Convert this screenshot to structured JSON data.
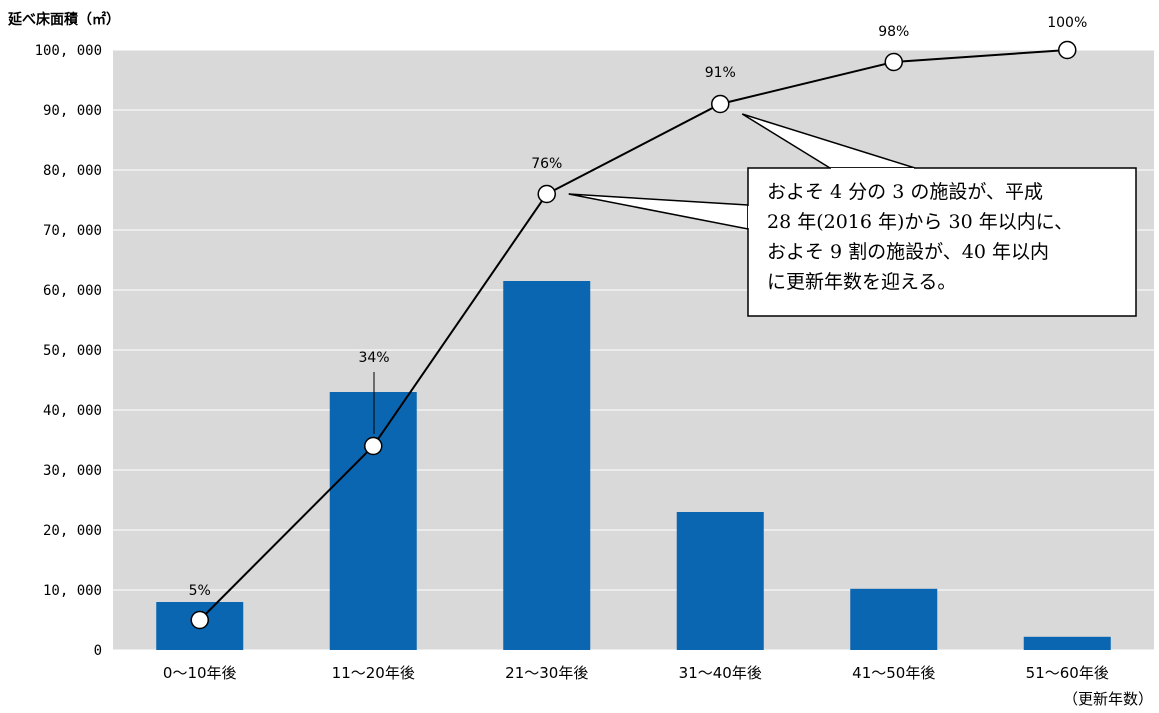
{
  "chart_data": {
    "type": "bar",
    "ylabel": "延べ床面積（㎡）",
    "xlabel": "（更新年数）",
    "categories": [
      "0～10年後",
      "11～20年後",
      "21～30年後",
      "31～40年後",
      "41～50年後",
      "51～60年後"
    ],
    "series": [
      {
        "type": "bar",
        "values": [
          8000,
          43000,
          61500,
          23000,
          10200,
          2200
        ],
        "color": "#0b66b1"
      },
      {
        "type": "line",
        "axis": "cumulative_percent",
        "values": [
          5,
          34,
          76,
          91,
          98,
          100
        ],
        "labels": [
          "5%",
          "34%",
          "76%",
          "91%",
          "98%",
          "100%"
        ],
        "color": "#000000"
      }
    ],
    "ylim": [
      0,
      100000
    ],
    "yticks": [
      0,
      10000,
      20000,
      30000,
      40000,
      50000,
      60000,
      70000,
      80000,
      90000,
      100000
    ],
    "ytick_labels": [
      "0",
      "10, 000",
      "20, 000",
      "30, 000",
      "40, 000",
      "50, 000",
      "60, 000",
      "70, 000",
      "80, 000",
      "90, 000",
      "100, 000"
    ],
    "grid": true,
    "plot_background": "#d9d9d9",
    "annotation": {
      "lines": [
        "およそ 4 分の 3 の施設が、平成",
        "28 年(2016 年)から 30 年以内に、",
        "およそ 9 割の施設が、40 年以内",
        "に更新年数を迎える。"
      ]
    }
  }
}
